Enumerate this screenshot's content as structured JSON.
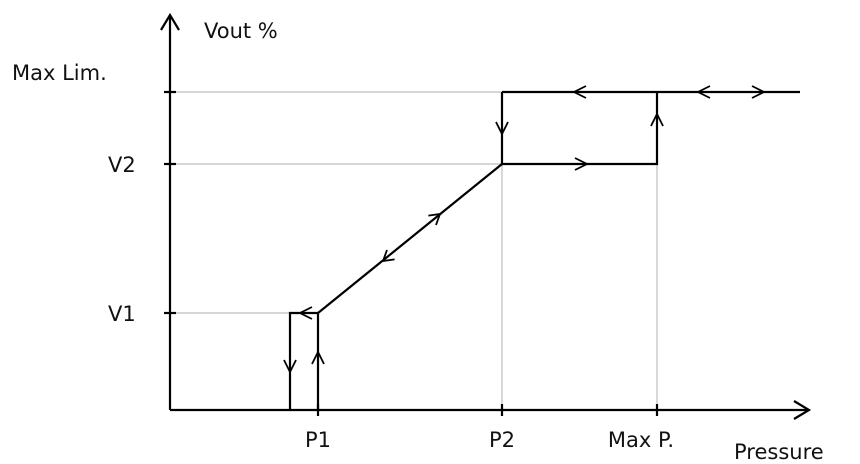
{
  "axes": {
    "y_label": "Vout %",
    "x_label": "Pressure"
  },
  "y_levels": [
    "Max Lim.",
    "V2",
    "V1"
  ],
  "x_levels": [
    "P1",
    "P2",
    "Max P."
  ]
}
